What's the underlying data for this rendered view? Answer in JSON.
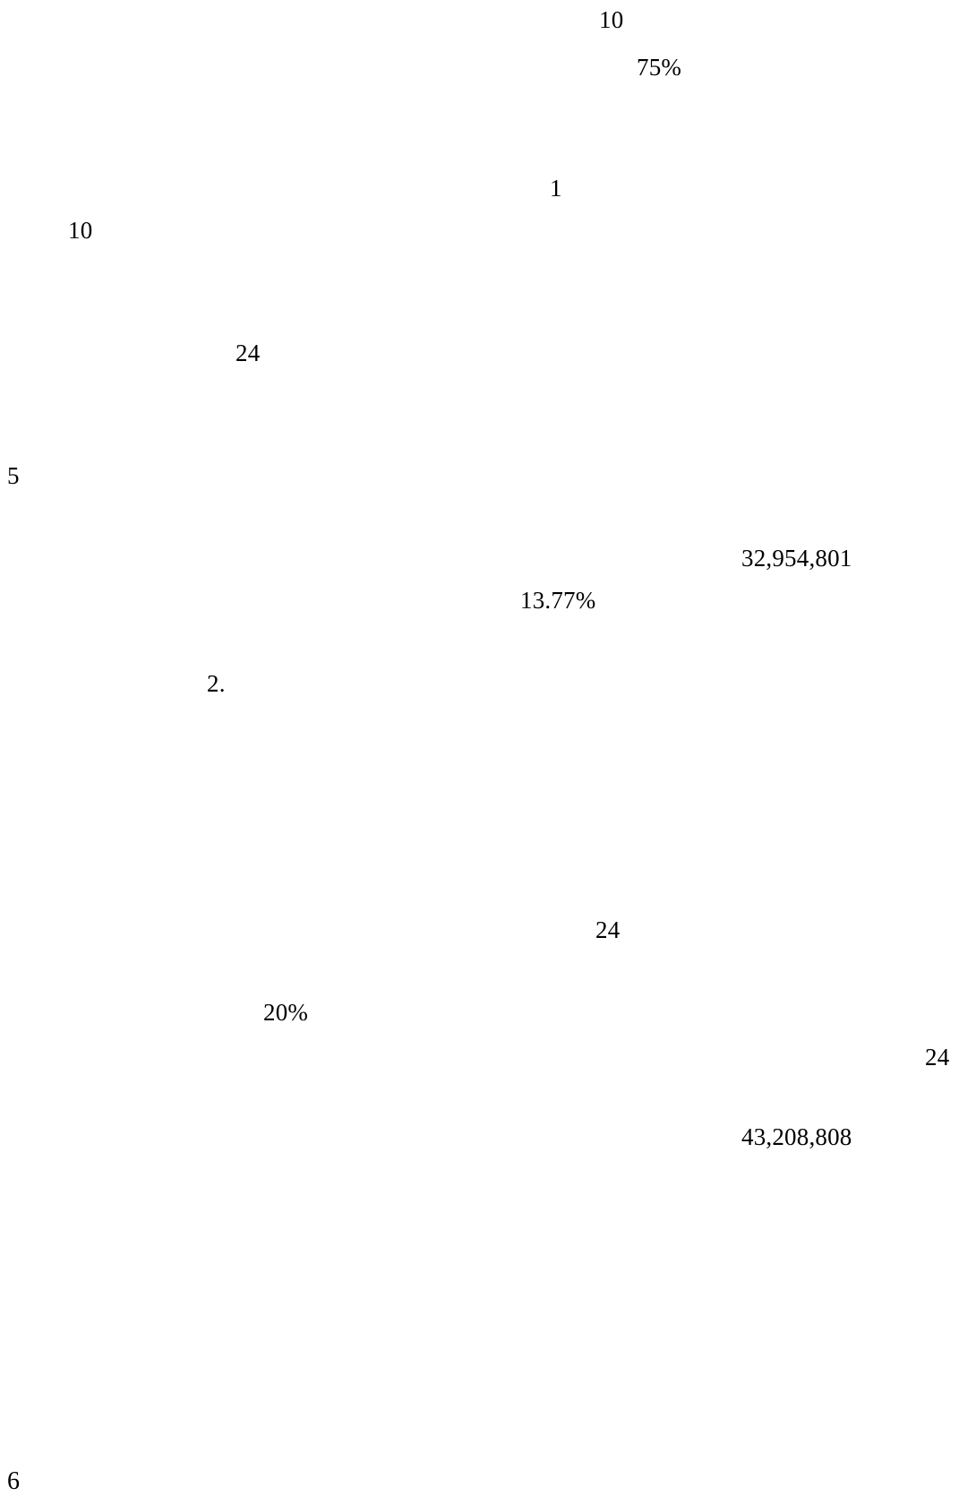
{
  "fragments": {
    "f1": "10",
    "f2": "75%",
    "f3": "1",
    "f4": "10",
    "f5": "24",
    "f6": "5",
    "f7": "32,954,801",
    "f8": "13.77%",
    "f9": "2.",
    "f10": "24",
    "f11": "20%",
    "f12": "24",
    "f13": "43,208,808"
  },
  "page_number": "6"
}
